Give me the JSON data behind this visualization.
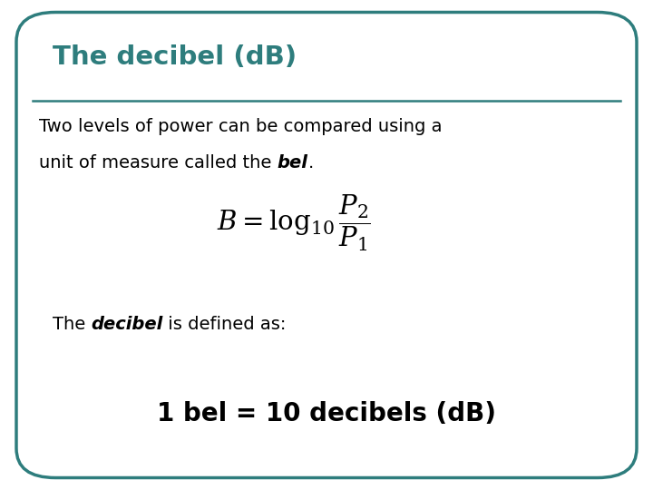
{
  "title": "The decibel (dB)",
  "title_color": "#2e7d7d",
  "bg_color": "#ffffff",
  "border_color": "#2e7d7d",
  "line_color": "#2e7d7d",
  "body_text_color": "#000000",
  "text1": "Two levels of power can be compared using a",
  "text2": "unit of measure called the ",
  "text2_bold_italic": "bel",
  "text2_end": ".",
  "subtext1": "The ",
  "subtext1_bold_italic": "decibel",
  "subtext1_end": " is defined as:",
  "bottom_text": "1 bel = 10 decibels (dB)",
  "figsize": [
    7.2,
    5.4
  ],
  "dpi": 100
}
